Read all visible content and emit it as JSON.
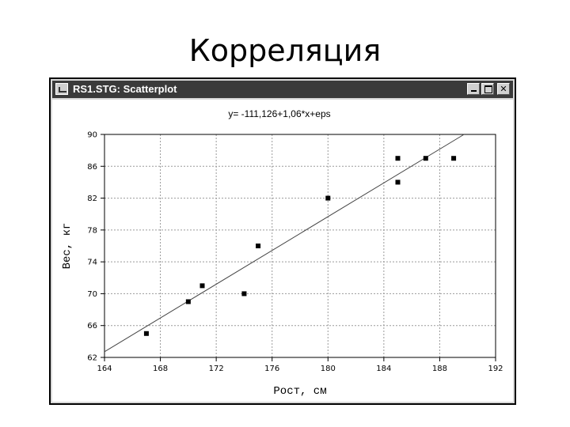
{
  "slide": {
    "title": "Корреляция"
  },
  "window": {
    "title": "RS1.STG: Scatterplot",
    "controls": {
      "minimize": "minimize",
      "maximize": "maximize",
      "close": "✕"
    }
  },
  "chart_data": {
    "type": "scatter",
    "title": "y= -111,126+1,06*x+eps",
    "xlabel": "Рост, см",
    "ylabel": "Вес, кг",
    "xlim": [
      164,
      192
    ],
    "ylim": [
      62,
      90
    ],
    "xticks": [
      164,
      168,
      172,
      176,
      180,
      184,
      188,
      192
    ],
    "yticks": [
      62,
      66,
      70,
      74,
      78,
      82,
      86,
      90
    ],
    "grid": true,
    "points": [
      {
        "x": 167,
        "y": 65
      },
      {
        "x": 170,
        "y": 69
      },
      {
        "x": 171,
        "y": 71
      },
      {
        "x": 174,
        "y": 70
      },
      {
        "x": 175,
        "y": 76
      },
      {
        "x": 180,
        "y": 82
      },
      {
        "x": 185,
        "y": 84
      },
      {
        "x": 185,
        "y": 87
      },
      {
        "x": 187,
        "y": 87
      },
      {
        "x": 189,
        "y": 87
      }
    ],
    "fit_line": {
      "intercept": -111.126,
      "slope": 1.06
    }
  }
}
